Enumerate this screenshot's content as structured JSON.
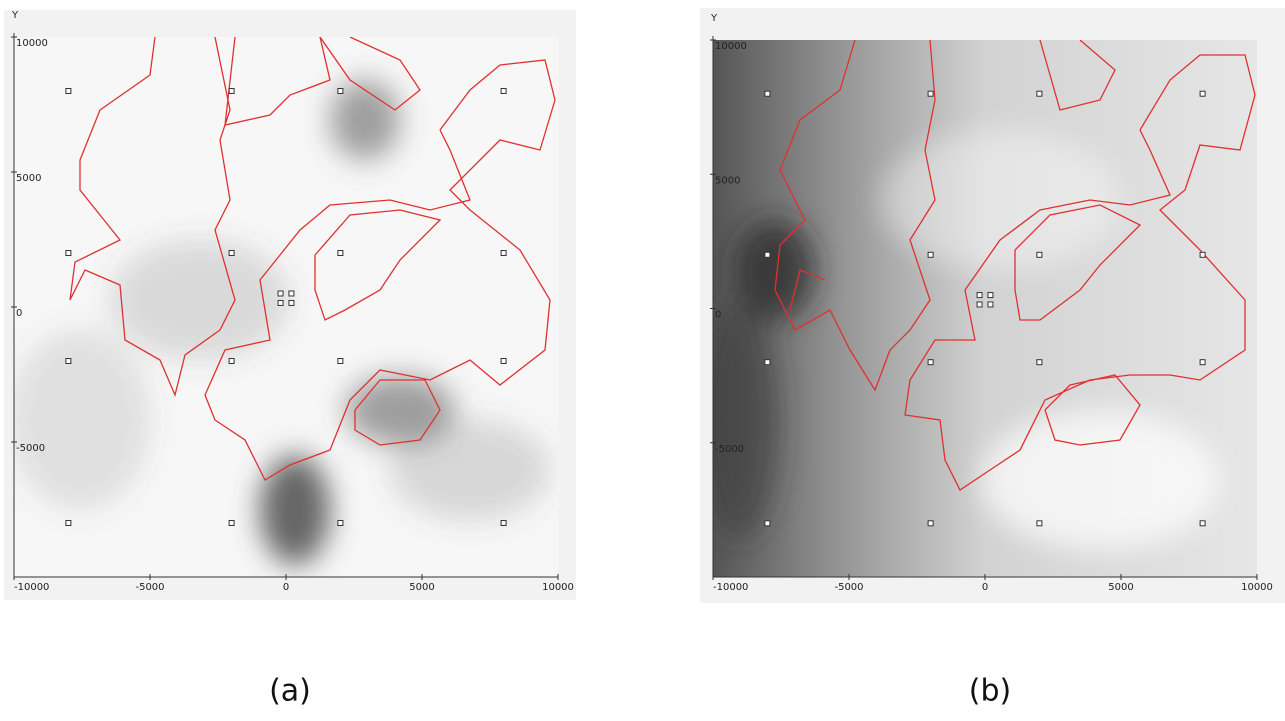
{
  "chart_data": [
    {
      "type": "map",
      "y_label": "Y",
      "caption": "(a)",
      "xlim": [
        -10000,
        10000
      ],
      "ylim": [
        -10000,
        10000
      ],
      "xticks": [
        -10000,
        -5000,
        0,
        5000,
        10000
      ],
      "yticks": [
        -5000,
        0,
        5000,
        10000
      ],
      "points": {
        "x": [
          -8000,
          -2000,
          2000,
          8000,
          -8000,
          -2000,
          2000,
          8000,
          -8000,
          -2000,
          2000,
          8000,
          -8000,
          -2000,
          2000,
          8000,
          -200,
          200,
          -200,
          200
        ],
        "y": [
          8000,
          8000,
          8000,
          8000,
          2000,
          2000,
          2000,
          2000,
          -2000,
          -2000,
          -2000,
          -2000,
          -8000,
          -8000,
          -8000,
          -8000,
          500,
          500,
          150,
          150
        ]
      }
    },
    {
      "type": "map",
      "y_label": "Y",
      "caption": "(b)",
      "xlim": [
        -10000,
        10000
      ],
      "ylim": [
        -10000,
        10000
      ],
      "xticks": [
        -10000,
        -5000,
        0,
        5000,
        10000
      ],
      "yticks": [
        -5000,
        0,
        5000,
        10000
      ],
      "points": {
        "x": [
          -8000,
          -2000,
          2000,
          8000,
          -8000,
          -2000,
          2000,
          8000,
          -8000,
          -2000,
          2000,
          8000,
          -8000,
          -2000,
          2000,
          8000,
          -200,
          200,
          -200,
          200
        ],
        "y": [
          8000,
          8000,
          8000,
          8000,
          2000,
          2000,
          2000,
          2000,
          -2000,
          -2000,
          -2000,
          -2000,
          -8000,
          -8000,
          -8000,
          -8000,
          500,
          500,
          150,
          150
        ]
      }
    }
  ]
}
